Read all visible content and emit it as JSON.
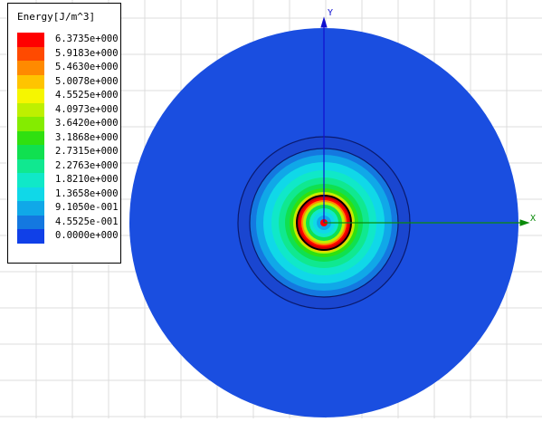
{
  "legend": {
    "title": "Energy[J/m^3]",
    "labels": [
      "6.3735e+000",
      "5.9183e+000",
      "5.4630e+000",
      "5.0078e+000",
      "4.5525e+000",
      "4.0973e+000",
      "3.6420e+000",
      "3.1868e+000",
      "2.7315e+000",
      "2.2763e+000",
      "1.8210e+000",
      "1.3658e+000",
      "9.1050e-001",
      "4.5525e-001",
      "0.0000e+000"
    ],
    "colors": [
      "#ff0000",
      "#ff4a00",
      "#ff8a00",
      "#ffc400",
      "#f6f600",
      "#bef000",
      "#84ec00",
      "#30e010",
      "#10e050",
      "#10e890",
      "#10e8c8",
      "#10d8e8",
      "#10a8e8",
      "#1478e0",
      "#1040e8"
    ]
  },
  "axes": {
    "x_label": "X",
    "y_label": "Y"
  },
  "colors": {
    "background": "#ffffff",
    "grid": "#dcdcdc",
    "outer_disk": "#1a4ee0",
    "ring_boundary": "#0a1a6e",
    "inner_band": "#1a46d0",
    "axis": "#1010d0",
    "axis_x": "#0a8a0a"
  }
}
